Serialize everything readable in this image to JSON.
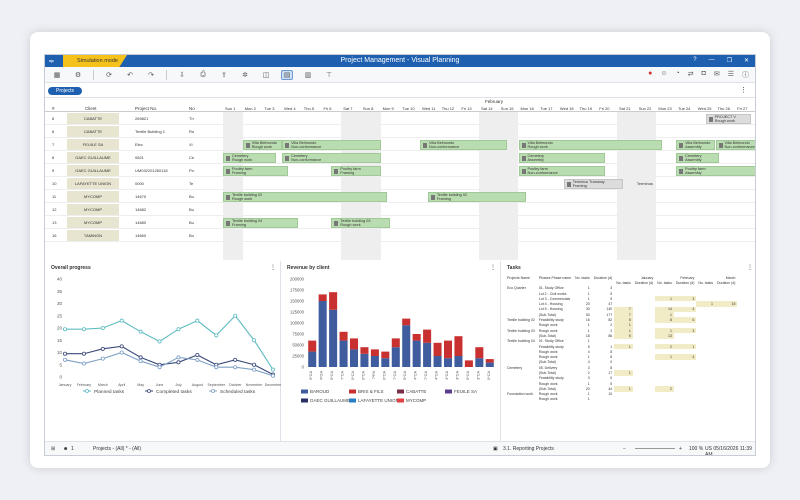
{
  "window": {
    "title": "Project Management - Visual Planning",
    "mode": "Simulation mode",
    "app_icon": "vp"
  },
  "toolbar": {
    "left_icons": [
      "grid-icon",
      "settings-icon",
      "refresh-icon",
      "undo-icon",
      "redo-icon",
      "import-icon",
      "print-icon",
      "export-icon",
      "gear-icon",
      "view-icon",
      "planning-view-icon",
      "chart-icon",
      "hierarchy-icon"
    ],
    "right_icons": [
      "flag-icon",
      "user-icon",
      "notification-icon",
      "share-icon",
      "lock-icon",
      "mail-icon",
      "list-icon",
      "help-icon"
    ]
  },
  "subbar": {
    "projects_label": "Projects"
  },
  "gantt": {
    "headers": {
      "id": "#",
      "client": "Client",
      "project_no": "Project No.",
      "no": "No"
    },
    "month": "February",
    "days": [
      "Sun 1",
      "Mon 2",
      "Tue 3",
      "Wed 4",
      "Thu 5",
      "Fri 6",
      "Sat 7",
      "Sun 8",
      "Mon 9",
      "Tue 10",
      "Wed 11",
      "Thu 12",
      "Fri 13",
      "Sat 14",
      "Sun 15",
      "Mon 16",
      "Tue 17",
      "Wed 18",
      "Thu 19",
      "Fri 20",
      "Sat 21",
      "Sun 22",
      "Mon 23",
      "Tue 24",
      "Wed 25",
      "Thu 26",
      "Fri 27",
      "Sat 28"
    ],
    "rows": [
      {
        "id": "8",
        "client": "CABATTE",
        "project": "269821",
        "no": "Th"
      },
      {
        "id": "6",
        "client": "CABATTE",
        "project": "Textile Building 1",
        "no": "Ro"
      },
      {
        "id": "7",
        "client": "FEUILE SA",
        "project": "Elec",
        "no": "Vi"
      },
      {
        "id": "8",
        "client": "GAEC GUILLAUME",
        "project": "0821",
        "no": "Ce"
      },
      {
        "id": "9",
        "client": "GAEC GUILLAUME",
        "project": "UM032201260118",
        "no": "Po"
      },
      {
        "id": "10",
        "client": "LAFAYETTE UNION",
        "project": "0000",
        "no": "Te"
      },
      {
        "id": "11",
        "client": "MYCOMP",
        "project": "14670",
        "no": "Bu"
      },
      {
        "id": "12",
        "client": "MYCOMP",
        "project": "14682",
        "no": "Bu"
      },
      {
        "id": "13",
        "client": "MYCOMP",
        "project": "14680",
        "no": "Bu"
      },
      {
        "id": "16",
        "client": "TAMINON",
        "project": "14660",
        "no": "Bu"
      }
    ],
    "bars": [
      {
        "row": 0,
        "start": 24.5,
        "len": 2.3,
        "l1": "PROJECT V",
        "l2": "Rough work",
        "gray": true
      },
      {
        "row": 2,
        "start": 1.0,
        "len": 2.0,
        "l1": "Villa Belmondo",
        "l2": "Rough work"
      },
      {
        "row": 2,
        "start": 3.0,
        "len": 5.0,
        "l1": "Villa Belmondo",
        "l2": "Non-conformance"
      },
      {
        "row": 2,
        "start": 10.0,
        "len": 4.4,
        "l1": "Villa Belmondo",
        "l2": "Non-conformance"
      },
      {
        "row": 2,
        "start": 15.0,
        "len": 7.3,
        "l1": "Villa Belmondo",
        "l2": "Rough work"
      },
      {
        "row": 2,
        "start": 23.0,
        "len": 2.0,
        "l1": "Villa Belmondo",
        "l2": "Assembly"
      },
      {
        "row": 2,
        "start": 25.0,
        "len": 3.0,
        "l1": "Villa Belmondo",
        "l2": "Non-conformance"
      },
      {
        "row": 3,
        "start": 0.0,
        "len": 2.7,
        "l1": "Cemetery",
        "l2": "Rough work"
      },
      {
        "row": 3,
        "start": 3.0,
        "len": 5.0,
        "l1": "Cemetery",
        "l2": "Non-conformance"
      },
      {
        "row": 3,
        "start": 15.0,
        "len": 4.4,
        "l1": "Cemetery",
        "l2": "Assembly"
      },
      {
        "row": 3,
        "start": 23.0,
        "len": 2.2,
        "l1": "Cemetery",
        "l2": "Assembly"
      },
      {
        "row": 4,
        "start": 0.0,
        "len": 3.3,
        "l1": "Poultry farm",
        "l2": "Framing"
      },
      {
        "row": 4,
        "start": 5.5,
        "len": 2.5,
        "l1": "Poultry farm",
        "l2": "Framing"
      },
      {
        "row": 4,
        "start": 15.0,
        "len": 4.4,
        "l1": "Poultry farm",
        "l2": "Non-conformance"
      },
      {
        "row": 4,
        "start": 23.0,
        "len": 4.9,
        "l1": "Poultry farm",
        "l2": "Assembly"
      },
      {
        "row": 5,
        "start": 17.3,
        "len": 3.0,
        "l1": "Terminus Tramway",
        "l2": "Framing",
        "gray": true
      },
      {
        "row": 6,
        "start": 0.0,
        "len": 8.3,
        "l1": "Textile building 02",
        "l2": "Rough work"
      },
      {
        "row": 6,
        "start": 10.4,
        "len": 5.0,
        "l1": "Textile building 02",
        "l2": "Framing"
      },
      {
        "row": 8,
        "start": 0.0,
        "len": 3.8,
        "l1": "Textile building 04",
        "l2": "Framing"
      },
      {
        "row": 8,
        "start": 5.5,
        "len": 3.0,
        "l1": "Textile building 03",
        "l2": "Rough work"
      }
    ],
    "terminus_label": "Terminus"
  },
  "panels": {
    "progress": {
      "title": "Overall progress"
    },
    "revenue": {
      "title": "Revenue by client"
    },
    "tasks": {
      "title": "Tasks"
    }
  },
  "chart_data": [
    {
      "type": "line",
      "title": "Overall progress",
      "categories": [
        "January",
        "February",
        "March",
        "April",
        "May",
        "June",
        "July",
        "August",
        "September",
        "October",
        "November",
        "December"
      ],
      "ylim": [
        0,
        40
      ],
      "yticks": [
        "0",
        "5",
        "10",
        "15",
        "20",
        "25",
        "30",
        "35",
        "40"
      ],
      "series": [
        {
          "name": "Planned tasks",
          "color": "#5fbcc1",
          "values": [
            19.5,
            19.5,
            20,
            23,
            18.5,
            14.5,
            19.5,
            23,
            17,
            25,
            15,
            3
          ]
        },
        {
          "name": "Completed tasks",
          "color": "#3b4a7a",
          "values": [
            9.5,
            9.5,
            11.5,
            12.5,
            8,
            5,
            6,
            9,
            5,
            7,
            5,
            1
          ]
        },
        {
          "name": "Scheduled tasks",
          "color": "#7fa0c5",
          "values": [
            7,
            5.5,
            7.5,
            10,
            6.5,
            4,
            8,
            7,
            4,
            4,
            3,
            0.5
          ]
        }
      ]
    },
    {
      "type": "bar",
      "title": "Revenue by client",
      "ylim": [
        0,
        200000
      ],
      "yticks": [
        "0",
        "25000",
        "50000",
        "75000",
        "100000",
        "125000",
        "150000",
        "175000",
        "200000"
      ],
      "categories": [
        "0*CA",
        "4*GA",
        "0*CA",
        "7*CA",
        "0*CA",
        "0*CA",
        "7*FA",
        "0*CA",
        "7*CA",
        "0*CA",
        "4*CA",
        "7*CA",
        "4*CA",
        "4*CA",
        "3*CA",
        "0*CA",
        "3*CA",
        "0*CA"
      ],
      "series": [
        {
          "name": "BAROUD",
          "color": "#3f5c9e",
          "values": [
            35000,
            150000,
            130000,
            60000,
            40000,
            30000,
            25000,
            20000,
            45000,
            95000,
            60000,
            55000,
            25000,
            20000,
            25000,
            0,
            20000,
            10000
          ]
        },
        {
          "name": "BRIS & FILS",
          "color": "#c93030",
          "values": [
            25000,
            15000,
            40000,
            20000,
            25000,
            15000,
            15000,
            15000,
            20000,
            15000,
            15000,
            30000,
            30000,
            40000,
            45000,
            15000,
            25000,
            8000
          ]
        },
        {
          "name": "CABATTE",
          "color": "#7b2d4d",
          "values": [
            0,
            0,
            0,
            0,
            0,
            0,
            0,
            0,
            0,
            0,
            0,
            0,
            0,
            0,
            0,
            0,
            0,
            0
          ]
        },
        {
          "name": "FEUILE SA",
          "color": "#5b3e8c",
          "values": [
            0,
            0,
            0,
            0,
            0,
            0,
            0,
            0,
            0,
            0,
            0,
            0,
            0,
            0,
            0,
            0,
            0,
            0
          ]
        },
        {
          "name": "GAEC GUILLAUME",
          "color": "#2b2f66",
          "values": [
            0,
            0,
            0,
            0,
            0,
            0,
            0,
            0,
            0,
            0,
            0,
            0,
            0,
            0,
            0,
            0,
            0,
            0
          ]
        },
        {
          "name": "LAFAYETTE UNION",
          "color": "#2a7fc4",
          "values": [
            0,
            0,
            0,
            0,
            0,
            0,
            0,
            0,
            0,
            0,
            0,
            0,
            0,
            0,
            0,
            0,
            0,
            0
          ]
        },
        {
          "name": "MYCOMP",
          "color": "#e04040",
          "values": [
            0,
            0,
            0,
            0,
            0,
            0,
            0,
            0,
            0,
            0,
            0,
            0,
            0,
            0,
            0,
            0,
            0,
            0
          ]
        }
      ]
    }
  ],
  "tasks_table": {
    "headers": [
      "Projects Name",
      "Phases Phase name",
      "No. tasks",
      "Duration (d)"
    ],
    "months": [
      "January",
      "February",
      "March"
    ],
    "subheaders": [
      "No. tasks",
      "Duration (d)",
      "No. tasks",
      "Duration (d)",
      "No. tasks",
      "Duration (d)"
    ],
    "rows": [
      [
        "Eco Quarter",
        "01. Study Office",
        "1",
        "3",
        "",
        "",
        "",
        "",
        "",
        ""
      ],
      [
        "",
        "Lot 2 - Civil works",
        "1",
        "5",
        "",
        "",
        "",
        "",
        "",
        ""
      ],
      [
        "",
        "Lot 3 - Commercials",
        "1",
        "5",
        "",
        "",
        "1",
        "3",
        "",
        ""
      ],
      [
        "",
        "Lot 4 - Housing",
        "20",
        "47",
        "",
        "",
        "",
        "",
        "1",
        "15"
      ],
      [
        "",
        "Lot 5 - Housing",
        "30",
        "140",
        "7",
        "",
        "14",
        "4",
        "",
        ""
      ],
      [
        "",
        "(Sub-Total)",
        "53",
        "177",
        "7",
        "",
        "1",
        "",
        "",
        ""
      ],
      [
        "Textile building 02",
        "Feasibility study",
        "16",
        "82",
        "5",
        "",
        "8",
        "6",
        "",
        ""
      ],
      [
        "",
        "Rough work",
        "1",
        "2",
        "1",
        "",
        "",
        "",
        "",
        ""
      ],
      [
        "Textile building 03",
        "Rough work",
        "1",
        "2",
        "1",
        "",
        "1",
        "3",
        "",
        ""
      ],
      [
        "",
        "(Sub-Total)",
        "18",
        "86",
        "5",
        "",
        "13",
        "",
        "",
        ""
      ],
      [
        "Textile building 04",
        "01. Study Office",
        "1",
        "",
        "",
        "",
        "",
        "",
        "",
        ""
      ],
      [
        "",
        "Feasibility study",
        "5",
        "1",
        "1",
        "",
        "2",
        "1",
        "",
        ""
      ],
      [
        "",
        "Rough work",
        "4",
        "8",
        "",
        "",
        "",
        "",
        "",
        ""
      ],
      [
        "",
        "Rough work",
        "1",
        "8",
        "",
        "",
        "1",
        "4",
        "",
        ""
      ],
      [
        "",
        "(Sub-Total)",
        "4",
        "0",
        "",
        "",
        "",
        "",
        "",
        ""
      ],
      [
        "Cemetery",
        "05. Delivery",
        "3",
        "8",
        "",
        "",
        "",
        "",
        "",
        ""
      ],
      [
        "",
        "(Sub-Total)",
        "2",
        "17",
        "1",
        "",
        "",
        "",
        "",
        ""
      ],
      [
        "",
        "Feasibility study",
        "3",
        "0",
        "",
        "",
        "",
        "",
        "",
        ""
      ],
      [
        "",
        "Rough work",
        "1",
        "5",
        "",
        "",
        "",
        "",
        "",
        ""
      ],
      [
        "",
        "(Sub-Total)",
        "20",
        "44",
        "1",
        "",
        "2",
        "",
        "",
        ""
      ],
      [
        "Foundation work",
        "Rough work",
        "1",
        "10",
        "",
        "",
        "",
        "",
        "",
        ""
      ],
      [
        "",
        "Rough work",
        "1",
        "",
        "",
        "",
        "",
        "",
        "",
        ""
      ]
    ]
  },
  "statusbar": {
    "user_count": "1",
    "filter": "Projects - (All) * - (All)",
    "view": "3.1. Reporting Projects",
    "zoom": "100 %",
    "datetime": "US 05/16/2026 11:39 AM"
  }
}
